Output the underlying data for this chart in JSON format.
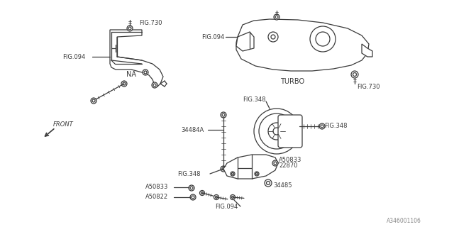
{
  "bg": "#ffffff",
  "lc": "#3a3a3a",
  "tc": "#3a3a3a",
  "wm": "A346001106",
  "lw": 0.9,
  "labels": {
    "FIG094_tl": "FIG.094",
    "FIG730_tm": "FIG.730",
    "FIG094_tr": "FIG.094",
    "NA": "NA",
    "TURBO": "TURBO",
    "FIG730_r": "FIG.730",
    "FRONT": "FRONT",
    "l34484A": "34484A",
    "FIG348_t": "FIG.348",
    "FIG348_r": "FIG.348",
    "FIG348_l": "FIG.348",
    "A50833_t": "A50833",
    "l22870": "22870",
    "A50833_b": "A50833",
    "A50822": "A50822",
    "l34485": "34485",
    "FIG094_b": "FIG.094"
  }
}
